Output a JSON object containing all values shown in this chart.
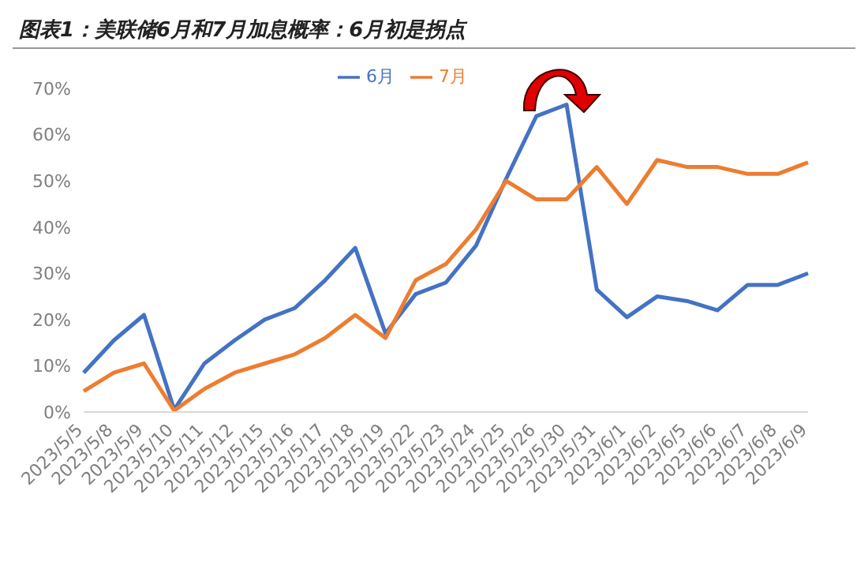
{
  "chart_data": {
    "type": "line",
    "title": "图表1：美联储6月和7月加息概率：6月初是拐点",
    "categories": [
      "2023/5/5",
      "2023/5/8",
      "2023/5/9",
      "2023/5/10",
      "2023/5/11",
      "2023/5/12",
      "2023/5/15",
      "2023/5/16",
      "2023/5/17",
      "2023/5/18",
      "2023/5/19",
      "2023/5/22",
      "2023/5/23",
      "2023/5/24",
      "2023/5/25",
      "2023/5/26",
      "2023/5/30",
      "2023/5/31",
      "2023/6/1",
      "2023/6/2",
      "2023/6/5",
      "2023/6/6",
      "2023/6/7",
      "2023/6/8",
      "2023/6/9"
    ],
    "series": [
      {
        "name": "6月",
        "color": "#4472c4",
        "values": [
          8.5,
          15.5,
          21,
          0.5,
          10.5,
          15.5,
          20,
          22.5,
          28.5,
          35.5,
          17,
          25.5,
          28,
          36,
          50.5,
          64,
          66.5,
          26.5,
          20.5,
          25,
          24,
          22,
          27.5,
          27.5,
          30
        ]
      },
      {
        "name": "7月",
        "color": "#ed7d31",
        "values": [
          4.5,
          8.5,
          10.5,
          0.3,
          5,
          8.5,
          10.5,
          12.5,
          16,
          21,
          16,
          28.5,
          32,
          39.5,
          50,
          46,
          46,
          53,
          45,
          54.5,
          53,
          53,
          51.5,
          51.5,
          54
        ]
      }
    ],
    "ylim": [
      0,
      70
    ],
    "yticks": [
      {
        "value": 0,
        "label": "0%"
      },
      {
        "value": 10,
        "label": "10%"
      },
      {
        "value": 20,
        "label": "20%"
      },
      {
        "value": 30,
        "label": "30%"
      },
      {
        "value": 40,
        "label": "40%"
      },
      {
        "value": 50,
        "label": "50%"
      },
      {
        "value": 60,
        "label": "60%"
      },
      {
        "value": 70,
        "label": "70%"
      }
    ],
    "grid": false,
    "legend": "top",
    "marker": "none",
    "line_style": "solid"
  }
}
